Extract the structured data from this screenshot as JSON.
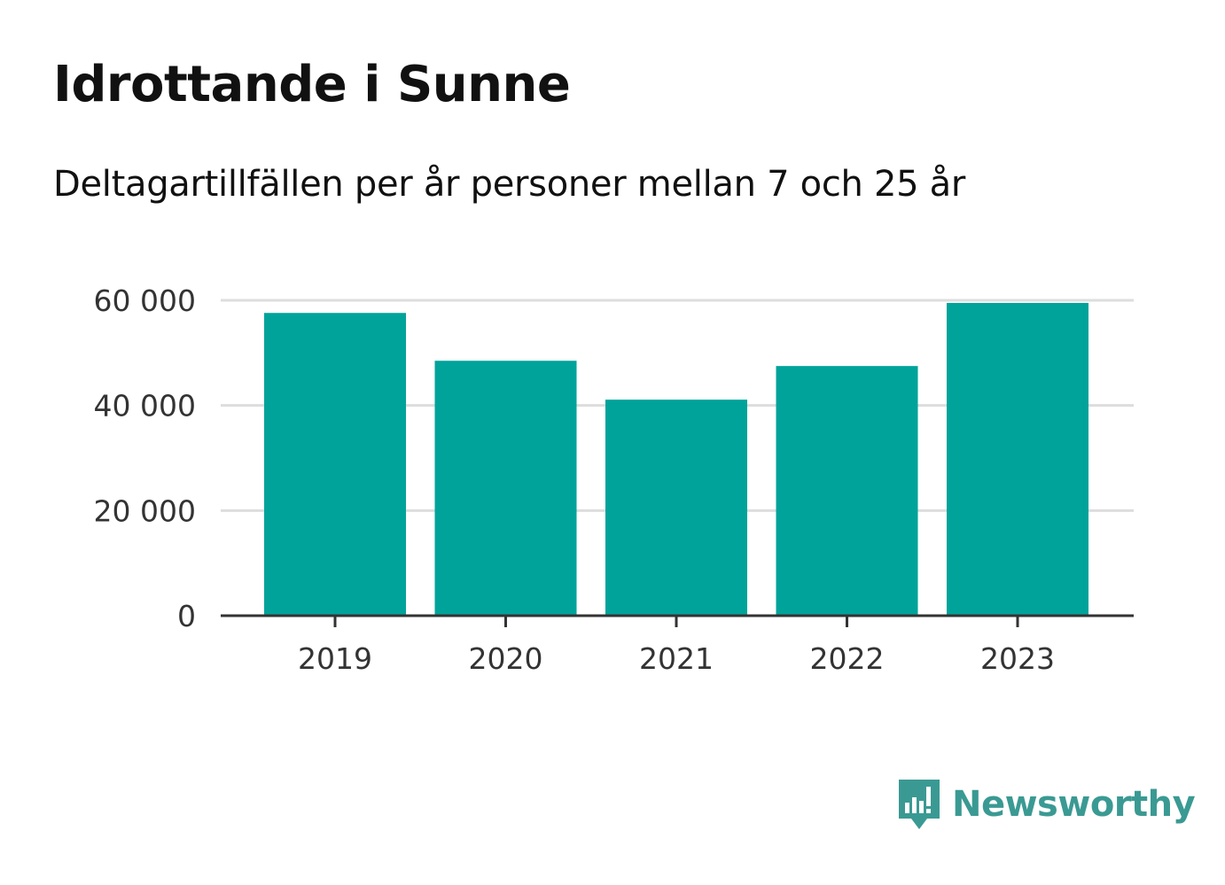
{
  "title": "Idrottande i Sunne",
  "subtitle": "Deltagartillfällen per år personer mellan 7 och 25 år",
  "brand": {
    "name": "Newsworthy",
    "color": "#3a9a93",
    "icon": "bar-chart-speech-bubble-icon"
  },
  "colors": {
    "bar": "#00a39a",
    "grid": "#dddddd",
    "axis": "#333333"
  },
  "chart_data": {
    "type": "bar",
    "categories": [
      "2019",
      "2020",
      "2021",
      "2022",
      "2023"
    ],
    "values": [
      57600,
      48500,
      41100,
      47500,
      59500
    ],
    "ylim": [
      0,
      60000
    ],
    "yticks": [
      0,
      20000,
      40000,
      60000
    ],
    "ytick_labels": [
      "0",
      "20 000",
      "40 000",
      "60 000"
    ],
    "xlabel": "",
    "ylabel": "",
    "grid": true
  }
}
